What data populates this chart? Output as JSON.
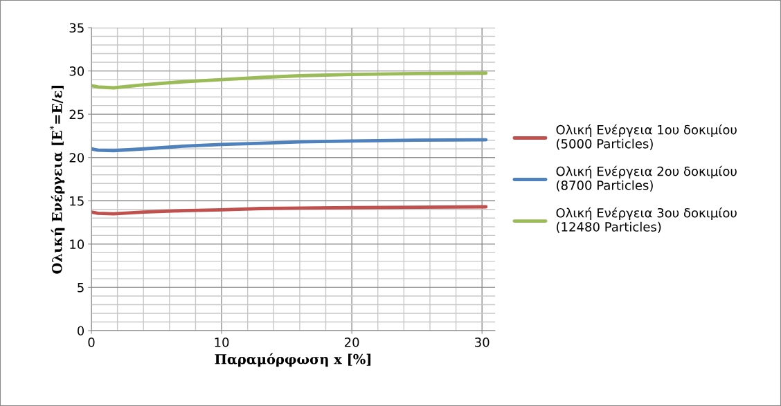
{
  "chart_data": {
    "type": "line",
    "xlabel": "Παραμόρφωση x [%]",
    "ylabel": "Ολική Ενέργεια [E$^{*}$=E/ε]",
    "xlim": [
      0,
      31
    ],
    "xticks": [
      0,
      10,
      20,
      30
    ],
    "ylim": [
      0,
      35
    ],
    "yticks": [
      0,
      5,
      10,
      15,
      20,
      25,
      30,
      35
    ],
    "grid": true,
    "legend": "right",
    "marker": "none",
    "line_style": "solid",
    "x": [
      0,
      0.5,
      1.7,
      4,
      7,
      10,
      13,
      16,
      20,
      25,
      30.3
    ],
    "series": [
      {
        "name": "Ολική Ενέργεια 1ου δοκιμίου (5000 Particles)",
        "color": "#c0504d",
        "values": [
          13.7,
          13.55,
          13.5,
          13.7,
          13.85,
          13.95,
          14.1,
          14.15,
          14.2,
          14.25,
          14.3
        ]
      },
      {
        "name": "Ολική Ενέργεια 2ου δοκιμίου (8700 Particles)",
        "color": "#4f81bd",
        "values": [
          21.0,
          20.85,
          20.8,
          21.0,
          21.3,
          21.5,
          21.65,
          21.8,
          21.9,
          22.0,
          22.05
        ]
      },
      {
        "name": "Ολική Ενέργεια 3ου δοκιμίου (12480 Particles)",
        "color": "#9bbb59",
        "values": [
          28.3,
          28.15,
          28.05,
          28.4,
          28.75,
          29.0,
          29.25,
          29.45,
          29.6,
          29.7,
          29.75
        ]
      }
    ]
  }
}
